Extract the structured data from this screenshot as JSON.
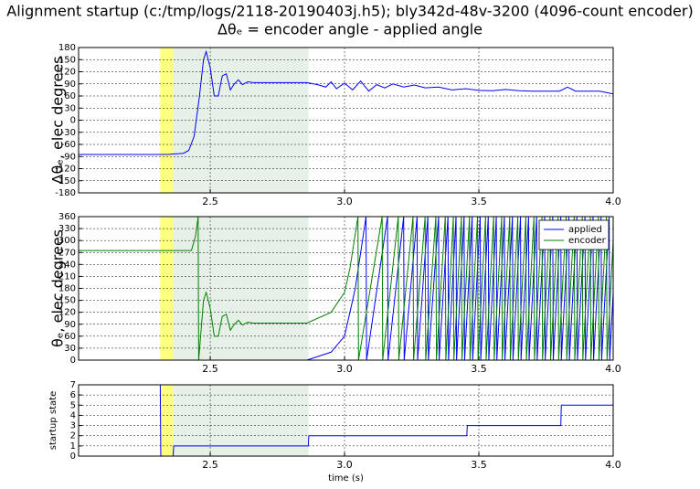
{
  "chart_data": [
    {
      "type": "line",
      "title": "Alignment startup (c:/tmp/logs/2118-20190403j.h5); bly342d-48v-3200 (4096-count encoder)",
      "subtitle": "Δθₑ =  encoder angle - applied angle",
      "ylabel": "Δθₑ, elec degrees",
      "xlim": [
        2.01,
        4.0
      ],
      "xticks": [
        2.5,
        {
          "value": 3,
          "label": "3.0"
        },
        3.5,
        {
          "value": 4,
          "label": "4.0"
        }
      ],
      "ylim": [
        -180,
        180
      ],
      "yticks": [
        -180,
        -150,
        -120,
        -90,
        -60,
        -30,
        0,
        30,
        60,
        90,
        120,
        150,
        180
      ],
      "grid": true,
      "spans": [
        {
          "x": [
            2.314,
            2.362
          ],
          "color": "#ffff80"
        },
        {
          "x": [
            2.362,
            2.866
          ],
          "color": "#e6f0e6"
        }
      ],
      "series": [
        {
          "color": "#0000ff",
          "x": [
            2.01,
            2.34,
            2.4,
            2.42,
            2.44,
            2.46,
            2.475,
            2.485,
            2.5,
            2.515,
            2.53,
            2.545,
            2.56,
            2.575,
            2.59,
            2.605,
            2.62,
            2.64,
            2.66,
            2.86,
            2.9,
            2.93,
            2.95,
            2.97,
            3.0,
            3.03,
            3.06,
            3.09,
            3.12,
            3.15,
            3.18,
            3.22,
            3.26,
            3.3,
            3.35,
            3.4,
            3.45,
            3.5,
            3.55,
            3.6,
            3.65,
            3.7,
            3.75,
            3.8,
            3.83,
            3.86,
            3.9,
            3.95,
            4.0
          ],
          "values": [
            -85,
            -85,
            -82,
            -75,
            -40,
            60,
            150,
            170,
            130,
            60,
            60,
            110,
            115,
            75,
            90,
            100,
            88,
            95,
            93,
            93,
            88,
            82,
            95,
            78,
            92,
            75,
            97,
            72,
            88,
            80,
            90,
            82,
            87,
            80,
            82,
            75,
            78,
            74,
            73,
            76,
            73,
            72,
            72,
            72,
            82,
            72,
            72,
            72,
            65
          ]
        }
      ]
    },
    {
      "type": "line",
      "ylabel": "θₑ, elec degrees",
      "xlim": [
        2.01,
        4.0
      ],
      "xticks": [
        2.5,
        {
          "value": 3,
          "label": "3.0"
        },
        3.5,
        {
          "value": 4,
          "label": "4.0"
        }
      ],
      "ylim": [
        0,
        360
      ],
      "yticks": [
        0,
        30,
        60,
        90,
        120,
        150,
        180,
        210,
        240,
        270,
        300,
        330,
        360
      ],
      "grid": true,
      "legend": "upper right",
      "spans": [
        {
          "x": [
            2.314,
            2.362
          ],
          "color": "#ffff80"
        },
        {
          "x": [
            2.362,
            2.866
          ],
          "color": "#e6f0e6"
        }
      ],
      "series": [
        {
          "name": "applied",
          "color": "#0000ff",
          "x": [
            2.01,
            2.86,
            2.95,
            3.0,
            3.04,
            3.08,
            3.082,
            3.16,
            3.162,
            3.22,
            3.222,
            3.27,
            3.272,
            3.31,
            3.312,
            3.35,
            3.352,
            3.385,
            3.387,
            3.415,
            3.417,
            3.445,
            3.447,
            3.475,
            3.477,
            3.505,
            3.507,
            3.535,
            3.537,
            3.565,
            3.567,
            3.595,
            3.597,
            3.625,
            3.627,
            3.655,
            3.657,
            3.685,
            3.687,
            3.715,
            3.717,
            3.745,
            3.747,
            3.775,
            3.777,
            3.805,
            3.807,
            3.835,
            3.837,
            3.865,
            3.867,
            3.895,
            3.897,
            3.925,
            3.927,
            3.955,
            3.957,
            3.985,
            3.987,
            4.0
          ],
          "values": [
            0,
            0,
            20,
            60,
            180,
            360,
            0,
            360,
            0,
            360,
            0,
            360,
            0,
            360,
            0,
            360,
            0,
            360,
            0,
            360,
            0,
            360,
            0,
            360,
            0,
            360,
            0,
            360,
            0,
            360,
            0,
            360,
            0,
            360,
            0,
            360,
            0,
            360,
            0,
            360,
            0,
            360,
            0,
            360,
            0,
            360,
            0,
            360,
            0,
            360,
            0,
            360,
            0,
            360,
            0,
            360,
            0,
            360,
            0,
            170
          ]
        },
        {
          "name": "encoder",
          "color": "#008000",
          "x": [
            2.01,
            2.43,
            2.445,
            2.455,
            2.457,
            2.475,
            2.485,
            2.5,
            2.515,
            2.53,
            2.545,
            2.56,
            2.575,
            2.59,
            2.605,
            2.62,
            2.64,
            2.66,
            2.86,
            2.95,
            3.0,
            3.02,
            3.05,
            3.052,
            3.14,
            3.142,
            3.2,
            3.202,
            3.255,
            3.257,
            3.3,
            3.302,
            3.34,
            3.342,
            3.375,
            3.377,
            3.405,
            3.407,
            3.435,
            3.437,
            3.465,
            3.467,
            3.495,
            3.497,
            3.525,
            3.527,
            3.555,
            3.557,
            3.585,
            3.587,
            3.615,
            3.617,
            3.645,
            3.647,
            3.675,
            3.677,
            3.705,
            3.707,
            3.735,
            3.737,
            3.765,
            3.767,
            3.795,
            3.797,
            3.825,
            3.827,
            3.855,
            3.857,
            3.885,
            3.887,
            3.915,
            3.917,
            3.945,
            3.947,
            3.975,
            3.977,
            4.0
          ],
          "values": [
            275,
            275,
            310,
            360,
            0,
            150,
            170,
            130,
            60,
            60,
            110,
            115,
            75,
            90,
            100,
            88,
            95,
            93,
            93,
            120,
            170,
            230,
            360,
            0,
            360,
            0,
            360,
            0,
            360,
            0,
            360,
            0,
            360,
            0,
            360,
            0,
            360,
            0,
            360,
            0,
            360,
            0,
            360,
            0,
            360,
            0,
            360,
            0,
            360,
            0,
            360,
            0,
            360,
            0,
            360,
            0,
            360,
            0,
            360,
            0,
            360,
            0,
            360,
            0,
            360,
            0,
            360,
            0,
            360,
            0,
            360,
            0,
            360,
            0,
            360,
            0,
            300
          ]
        }
      ]
    },
    {
      "type": "line",
      "ylabel": "startup state",
      "xlabel": "time (s)",
      "xlim": [
        2.01,
        4.0
      ],
      "xticks": [
        2.5,
        {
          "value": 3,
          "label": "3.0"
        },
        3.5,
        {
          "value": 4,
          "label": "4.0"
        }
      ],
      "ylim": [
        0,
        7
      ],
      "yticks": [
        0,
        1,
        2,
        3,
        4,
        5,
        6,
        7
      ],
      "grid": true,
      "spans": [
        {
          "x": [
            2.314,
            2.362
          ],
          "color": "#ffff80"
        },
        {
          "x": [
            2.362,
            2.866
          ],
          "color": "#e6f0e6"
        }
      ],
      "series": [
        {
          "color": "#0000ff",
          "x": [
            2.01,
            2.314,
            2.316,
            2.362,
            2.364,
            2.865,
            2.867,
            3.455,
            3.457,
            3.805,
            3.807,
            4.0
          ],
          "values": [
            7,
            7,
            0,
            0,
            1,
            1,
            2,
            2,
            3,
            3,
            5,
            5
          ]
        }
      ]
    }
  ]
}
